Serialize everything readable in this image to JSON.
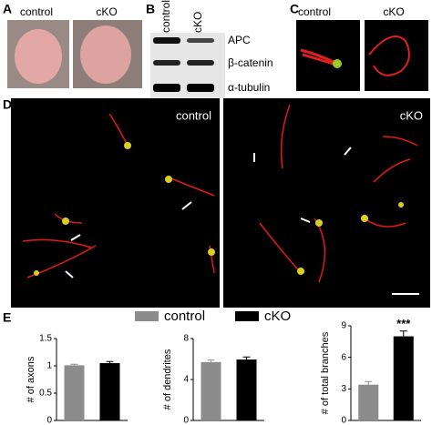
{
  "panels": {
    "A": {
      "label": "A",
      "texts": [
        "control",
        "cKO"
      ]
    },
    "B": {
      "label": "B",
      "lanes": [
        "control",
        "cKO"
      ],
      "bands": [
        "APC",
        "β-catenin",
        "α-tubulin"
      ]
    },
    "C": {
      "label": "C",
      "texts": [
        "control",
        "cKO"
      ]
    },
    "D": {
      "label": "D",
      "texts": [
        "control",
        "cKO"
      ]
    },
    "E": {
      "label": "E",
      "legend": [
        {
          "name": "control",
          "color": "#8c8c8c"
        },
        {
          "name": "cKO",
          "color": "#000000"
        }
      ]
    }
  },
  "chart_data": [
    {
      "type": "bar",
      "ylabel": "# of axons",
      "categories": [
        null,
        null
      ],
      "values": [
        1.01,
        1.05
      ],
      "errors": [
        0.02,
        0.03
      ],
      "colors": [
        "#8c8c8c",
        "#000000"
      ],
      "ylim": [
        0,
        1.5
      ],
      "yticks": [
        0,
        0.5,
        1,
        1.5
      ]
    },
    {
      "type": "bar",
      "ylabel": "# of dendrites",
      "categories": [
        null,
        null
      ],
      "values": [
        5.7,
        5.95
      ],
      "errors": [
        0.2,
        0.25
      ],
      "colors": [
        "#8c8c8c",
        "#000000"
      ],
      "ylim": [
        0,
        8
      ],
      "yticks": [
        0,
        4,
        8
      ]
    },
    {
      "type": "bar",
      "ylabel": "# of total branches",
      "categories": [
        null,
        null
      ],
      "values": [
        3.4,
        8.0
      ],
      "errors": [
        0.3,
        0.5
      ],
      "colors": [
        "#8c8c8c",
        "#000000"
      ],
      "ylim": [
        0,
        9
      ],
      "yticks": [
        0,
        3,
        6,
        9
      ],
      "annotation": "***"
    }
  ]
}
